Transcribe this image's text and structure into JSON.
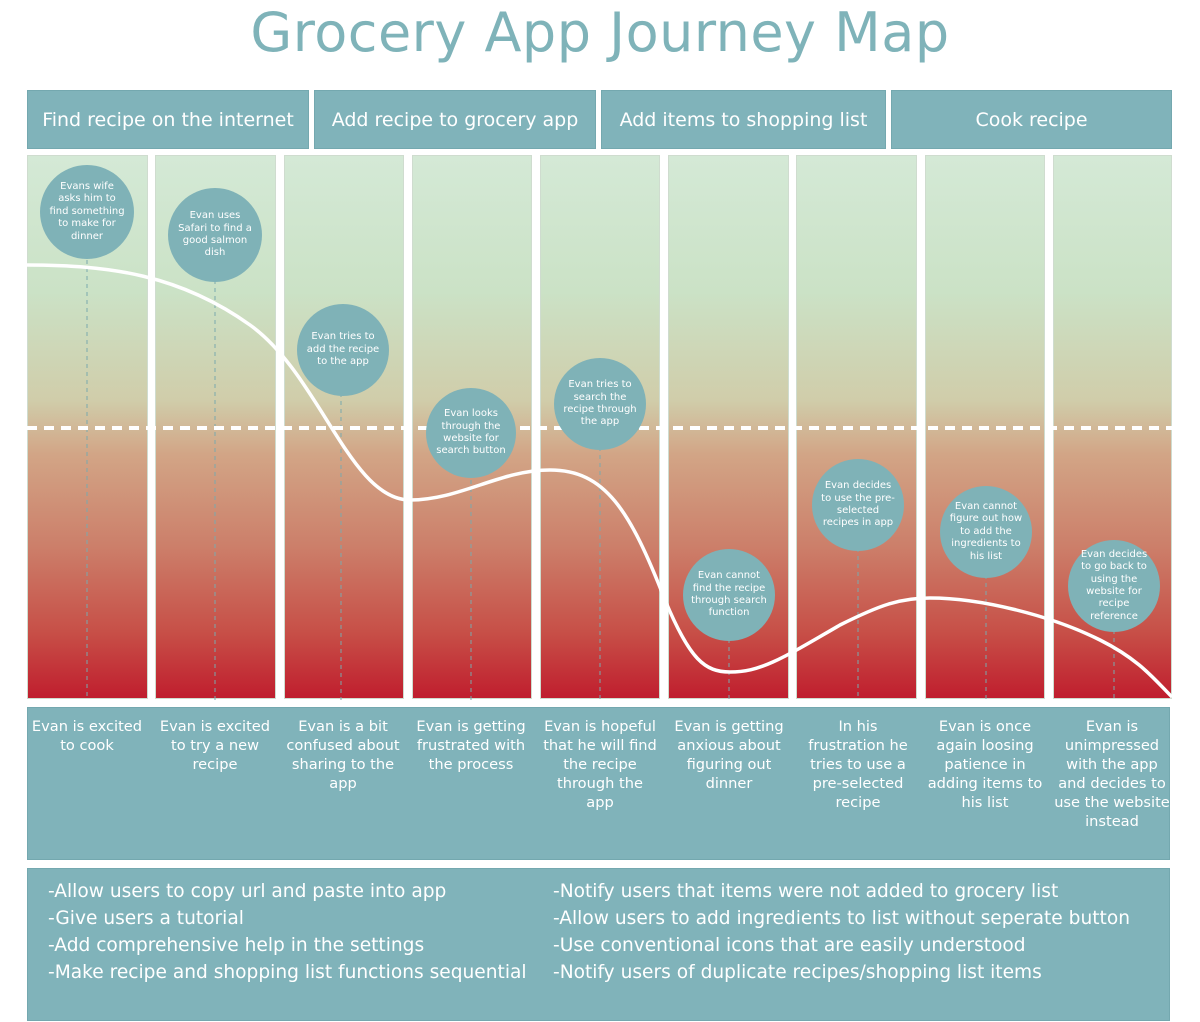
{
  "title": "Grocery App Journey Map",
  "phases": [
    "Find recipe on the internet",
    "Add recipe to grocery app",
    "Add items to shopping list",
    "Cook recipe"
  ],
  "steps": [
    {
      "action": "Evans wife asks him to find something to make for dinner",
      "emotion": "Evan is excited to cook",
      "level": 0.82
    },
    {
      "action": "Evan uses Safari to find a good salmon dish",
      "emotion": "Evan is excited to try a new recipe",
      "level": 0.7
    },
    {
      "action": "Evan tries to add the recipe to the app",
      "emotion": "Evan is a bit confused about sharing to the app",
      "level": 0.48
    },
    {
      "action": "Evan looks through the website for search button",
      "emotion": "Evan is getting frustrated with the process",
      "level": 0.38
    },
    {
      "action": "Evan tries to search the recipe through the app",
      "emotion": "Evan is hopeful that he will find the recipe through the app",
      "level": 0.3
    },
    {
      "action": "Evan cannot find the recipe through search function",
      "emotion": "Evan is getting anxious about figuring out dinner",
      "level": 0.05
    },
    {
      "action": "Evan decides to use the pre-selected recipes in app",
      "emotion": "In his frustration he tries to use a pre-selected recipe",
      "level": 0.17
    },
    {
      "action": "Evan cannot figure out how to add the ingredients to his list",
      "emotion": "Evan is once again loosing patience in adding items to his list",
      "level": 0.18
    },
    {
      "action": "Evan decides to go back to using the website for recipe reference",
      "emotion": "Evan is unimpressed with the app and decides to use the website instead",
      "level": 0.05
    }
  ],
  "recommendations": {
    "left": [
      "-Allow users to copy url and paste into app",
      "-Give users a tutorial",
      "-Add comprehensive help in the settings",
      "-Make recipe and shopping list functions sequential"
    ],
    "right": [
      "-Notify users that items were not added to grocery list",
      "-Allow users to add ingredients to list without seperate button",
      "-Use conventional icons that are easily understood",
      "-Notify users of duplicate recipes/shopping list items"
    ]
  },
  "colors": {
    "accent": "#80b3ba",
    "title": "#7fb3b9",
    "positive": "#d4e9d6",
    "negative": "#c01e2e"
  }
}
